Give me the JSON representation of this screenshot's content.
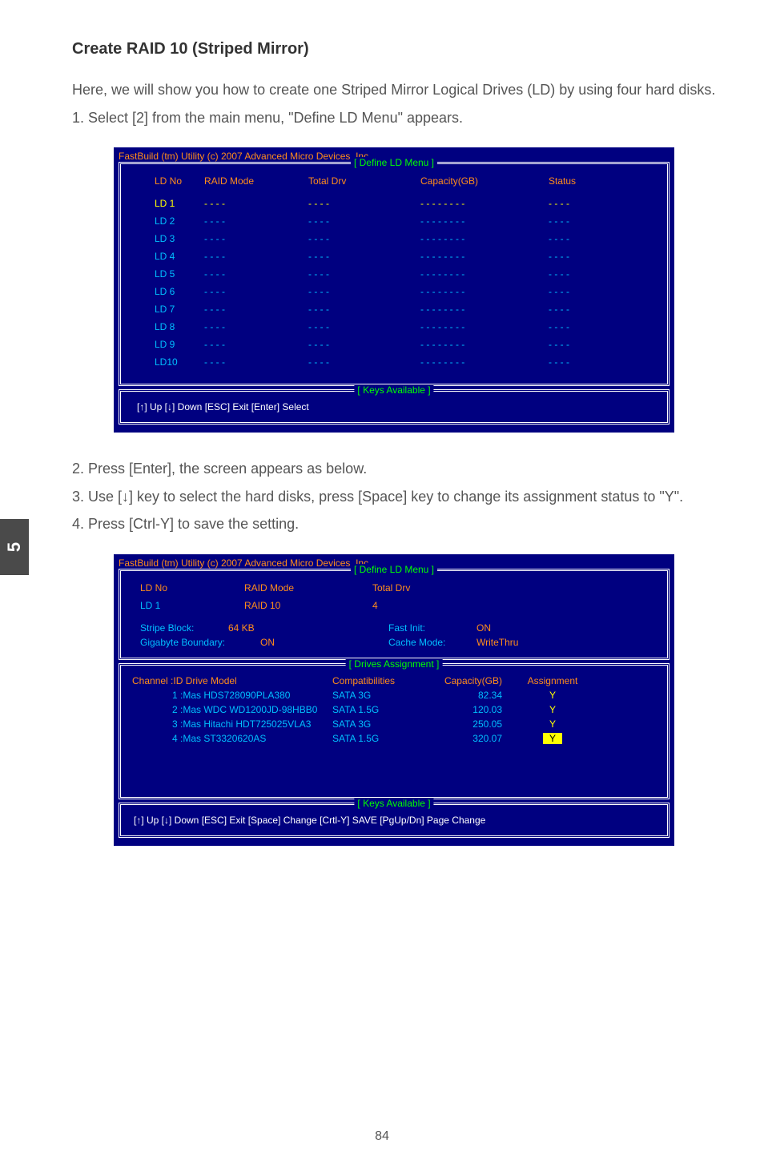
{
  "page": {
    "chapter_tab": "5",
    "page_number": "84",
    "section_title": "Create RAID 10 (Striped Mirror)",
    "intro_p": "Here, we will show you how to create one Striped Mirror Logical Drives (LD) by using four hard disks.",
    "step1": "1. Select [2] from the main menu, \"Define LD Menu\" appears.",
    "step2": "2. Press [Enter], the screen appears as below.",
    "step3": "3. Use [↓] key to select the hard disks, press [Space] key to change its assignment status to \"Y\".",
    "step4": "4. Press [Ctrl-Y] to save the setting."
  },
  "bios1": {
    "title": "FastBuild (tm) Utility (c) 2007 Advanced Micro Devices, Inc.",
    "frame1_label": "[ Define LD Menu ]",
    "headers": {
      "ld": "LD No",
      "raid": "RAID Mode",
      "tot": "Total Drv",
      "cap": "Capacity(GB)",
      "stat": "Status"
    },
    "rows": [
      {
        "ld": "LD   1",
        "raid": "- - - -",
        "tot": "- - - -",
        "cap": "- - - - - - - -",
        "stat": "- - - -",
        "sel": true
      },
      {
        "ld": "LD   2",
        "raid": "- - - -",
        "tot": "- - - -",
        "cap": "- - - - - - - -",
        "stat": "- - - -",
        "sel": false
      },
      {
        "ld": "LD   3",
        "raid": "- - - -",
        "tot": "- - - -",
        "cap": "- - - - - - - -",
        "stat": "- - - -",
        "sel": false
      },
      {
        "ld": "LD   4",
        "raid": "- - - -",
        "tot": "- - - -",
        "cap": "- - - - - - - -",
        "stat": "- - - -",
        "sel": false
      },
      {
        "ld": "LD   5",
        "raid": "- - - -",
        "tot": "- - - -",
        "cap": "- - - - - - - -",
        "stat": "- - - -",
        "sel": false
      },
      {
        "ld": "LD   6",
        "raid": "- - - -",
        "tot": "- - - -",
        "cap": "- - - - - - - -",
        "stat": "- - - -",
        "sel": false
      },
      {
        "ld": "LD   7",
        "raid": "- - - -",
        "tot": "- - - -",
        "cap": "- - - - - - - -",
        "stat": "- - - -",
        "sel": false
      },
      {
        "ld": "LD   8",
        "raid": "- - - -",
        "tot": "- - - -",
        "cap": "- - - - - - - -",
        "stat": "- - - -",
        "sel": false
      },
      {
        "ld": "LD   9",
        "raid": "- - - -",
        "tot": "- - - -",
        "cap": "- - - - - - - -",
        "stat": "- - - -",
        "sel": false
      },
      {
        "ld": "LD10",
        "raid": "- - - -",
        "tot": "- - - -",
        "cap": "- - - - - - - -",
        "stat": "- - - -",
        "sel": false
      }
    ],
    "frame2_label": "[ Keys Available ]",
    "keys": "[↑] Up    [↓] Down    [ESC] Exit    [Enter] Select"
  },
  "bios2": {
    "title": "FastBuild (tm) Utility (c) 2007 Advanced Micro Devices, Inc.",
    "frame1_label": "[ Define LD Menu ]",
    "top": {
      "ldno_lbl": "LD No",
      "raid_lbl": "RAID Mode",
      "tot_lbl": "Total Drv",
      "ldno_val": "LD   1",
      "raid_val": "RAID 10",
      "tot_val": "4",
      "stripe_lbl": "Stripe Block:",
      "stripe_val": "64  KB",
      "gig_lbl": "Gigabyte Boundary:",
      "gig_val": "ON",
      "fast_lbl": "Fast Init:",
      "fast_val": "ON",
      "cache_lbl": "Cache Mode:",
      "cache_val": "WriteThru"
    },
    "frame2_label": "[ Drives Assignment ]",
    "drv_headers": {
      "ch": "Channel :ID   Drive Model",
      "comp": "Compatibilities",
      "cap": "Capacity(GB)",
      "asg": "Assignment"
    },
    "drives": [
      {
        "ch": "1 :Mas HDS728090PLA380",
        "comp": "SATA  3G",
        "cap": "82.34",
        "asg": "Y",
        "hl": false
      },
      {
        "ch": "2 :Mas WDC WD1200JD-98HBB0",
        "comp": "SATA  1.5G",
        "cap": "120.03",
        "asg": "Y",
        "hl": false
      },
      {
        "ch": "3 :Mas Hitachi HDT725025VLA3",
        "comp": "SATA  3G",
        "cap": "250.05",
        "asg": "Y",
        "hl": false
      },
      {
        "ch": "4 :Mas ST3320620AS",
        "comp": "SATA  1.5G",
        "cap": "320.07",
        "asg": "Y",
        "hl": true
      }
    ],
    "frame3_label": "[ Keys Available ]",
    "keys": "[↑] Up  [↓] Down  [ESC] Exit  [Space] Change  [Crtl-Y] SAVE   [PgUp/Dn] Page Change"
  }
}
